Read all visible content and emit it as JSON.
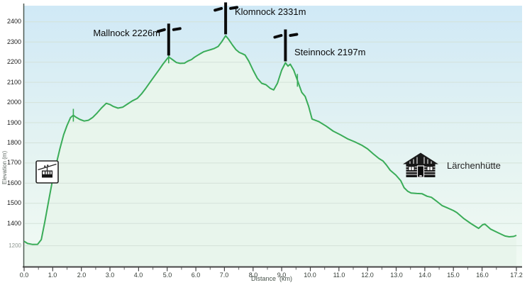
{
  "chart_data": {
    "type": "area",
    "title": "",
    "xlabel": "Distance  (km)",
    "ylabel": "Elevation (m)",
    "xlim": [
      0,
      17.2
    ],
    "ylim": [
      1190,
      2480
    ],
    "grid": true,
    "x_ticks": [
      {
        "km": 0,
        "label": "0.0"
      },
      {
        "km": 1,
        "label": "1.0"
      },
      {
        "km": 2,
        "label": "2.0"
      },
      {
        "km": 3,
        "label": "3.0"
      },
      {
        "km": 4,
        "label": "4.0"
      },
      {
        "km": 5,
        "label": "5.0"
      },
      {
        "km": 6,
        "label": "6.0"
      },
      {
        "km": 7,
        "label": "7.0"
      },
      {
        "km": 8,
        "label": "8.0"
      },
      {
        "km": 9,
        "label": "9.0"
      },
      {
        "km": 10,
        "label": "10.0"
      },
      {
        "km": 11,
        "label": "11.0"
      },
      {
        "km": 12,
        "label": "12.0"
      },
      {
        "km": 13,
        "label": "13.0"
      },
      {
        "km": 14,
        "label": "14.0"
      },
      {
        "km": 15,
        "label": "15.0"
      },
      {
        "km": 16,
        "label": "16.0"
      },
      {
        "km": 17.2,
        "label": "17.2"
      }
    ],
    "x_minor_tick_step": 0.5,
    "y_ticks": [
      {
        "elev": 2400,
        "label": "2400"
      },
      {
        "elev": 2300,
        "label": "2300"
      },
      {
        "elev": 2200,
        "label": "2200"
      },
      {
        "elev": 2100,
        "label": "2100"
      },
      {
        "elev": 2000,
        "label": "2000"
      },
      {
        "elev": 1900,
        "label": "1900"
      },
      {
        "elev": 1800,
        "label": "1800"
      },
      {
        "elev": 1700,
        "label": "1700"
      },
      {
        "elev": 1600,
        "label": "1600"
      },
      {
        "elev": 1500,
        "label": "1500"
      },
      {
        "elev": 1400,
        "label": "1400"
      },
      {
        "elev": 1290,
        "label": "1200",
        "muted": true
      }
    ],
    "profile": [
      [
        0.0,
        1312
      ],
      [
        0.12,
        1301
      ],
      [
        0.3,
        1296
      ],
      [
        0.47,
        1297
      ],
      [
        0.6,
        1320
      ],
      [
        0.72,
        1407
      ],
      [
        0.85,
        1507
      ],
      [
        1.0,
        1620
      ],
      [
        1.12,
        1693
      ],
      [
        1.25,
        1770
      ],
      [
        1.38,
        1840
      ],
      [
        1.5,
        1886
      ],
      [
        1.62,
        1925
      ],
      [
        1.72,
        1937
      ],
      [
        1.8,
        1928
      ],
      [
        1.95,
        1916
      ],
      [
        2.1,
        1908
      ],
      [
        2.25,
        1912
      ],
      [
        2.4,
        1926
      ],
      [
        2.55,
        1948
      ],
      [
        2.7,
        1972
      ],
      [
        2.87,
        1996
      ],
      [
        3.0,
        1990
      ],
      [
        3.12,
        1980
      ],
      [
        3.28,
        1972
      ],
      [
        3.45,
        1977
      ],
      [
        3.62,
        1993
      ],
      [
        3.78,
        2008
      ],
      [
        3.95,
        2020
      ],
      [
        4.1,
        2042
      ],
      [
        4.25,
        2070
      ],
      [
        4.4,
        2100
      ],
      [
        4.55,
        2130
      ],
      [
        4.72,
        2163
      ],
      [
        4.85,
        2190
      ],
      [
        4.95,
        2208
      ],
      [
        5.05,
        2226
      ],
      [
        5.18,
        2213
      ],
      [
        5.32,
        2198
      ],
      [
        5.45,
        2194
      ],
      [
        5.6,
        2195
      ],
      [
        5.72,
        2205
      ],
      [
        5.85,
        2213
      ],
      [
        5.95,
        2224
      ],
      [
        6.05,
        2233
      ],
      [
        6.17,
        2243
      ],
      [
        6.28,
        2252
      ],
      [
        6.4,
        2257
      ],
      [
        6.52,
        2262
      ],
      [
        6.65,
        2268
      ],
      [
        6.78,
        2278
      ],
      [
        6.9,
        2300
      ],
      [
        7.04,
        2331
      ],
      [
        7.15,
        2312
      ],
      [
        7.28,
        2285
      ],
      [
        7.4,
        2262
      ],
      [
        7.52,
        2248
      ],
      [
        7.62,
        2242
      ],
      [
        7.72,
        2235
      ],
      [
        7.85,
        2205
      ],
      [
        8.0,
        2160
      ],
      [
        8.15,
        2120
      ],
      [
        8.3,
        2095
      ],
      [
        8.45,
        2088
      ],
      [
        8.6,
        2070
      ],
      [
        8.72,
        2062
      ],
      [
        8.85,
        2095
      ],
      [
        9.0,
        2160
      ],
      [
        9.13,
        2197
      ],
      [
        9.22,
        2180
      ],
      [
        9.3,
        2190
      ],
      [
        9.42,
        2160
      ],
      [
        9.55,
        2110
      ],
      [
        9.7,
        2050
      ],
      [
        9.82,
        2030
      ],
      [
        9.94,
        1981
      ],
      [
        10.06,
        1918
      ],
      [
        10.3,
        1905
      ],
      [
        10.55,
        1883
      ],
      [
        10.8,
        1858
      ],
      [
        11.05,
        1840
      ],
      [
        11.3,
        1820
      ],
      [
        11.55,
        1805
      ],
      [
        11.8,
        1788
      ],
      [
        12.0,
        1770
      ],
      [
        12.2,
        1745
      ],
      [
        12.4,
        1722
      ],
      [
        12.54,
        1710
      ],
      [
        12.66,
        1690
      ],
      [
        12.79,
        1664
      ],
      [
        12.99,
        1640
      ],
      [
        13.16,
        1612
      ],
      [
        13.28,
        1577
      ],
      [
        13.4,
        1560
      ],
      [
        13.52,
        1551
      ],
      [
        13.72,
        1549
      ],
      [
        13.9,
        1548
      ],
      [
        14.08,
        1535
      ],
      [
        14.23,
        1530
      ],
      [
        14.4,
        1512
      ],
      [
        14.6,
        1489
      ],
      [
        14.78,
        1478
      ],
      [
        15.0,
        1464
      ],
      [
        15.12,
        1454
      ],
      [
        15.35,
        1426
      ],
      [
        15.6,
        1401
      ],
      [
        15.8,
        1383
      ],
      [
        15.88,
        1376
      ],
      [
        16.02,
        1394
      ],
      [
        16.1,
        1397
      ],
      [
        16.3,
        1372
      ],
      [
        16.55,
        1355
      ],
      [
        16.8,
        1338
      ],
      [
        16.95,
        1334
      ],
      [
        17.1,
        1336
      ],
      [
        17.2,
        1341
      ]
    ],
    "markers": {
      "peaks": [
        {
          "id": "mallnock",
          "icon": "summit-cross",
          "label": "Mallnock 2226m",
          "km": 5.05,
          "elev": 2226,
          "label_side": "left",
          "label_dy": 6
        },
        {
          "id": "klomnock",
          "icon": "summit-cross",
          "label": "Klomnock 2331m",
          "km": 7.04,
          "elev": 2331,
          "label_side": "right",
          "label_dy": 6
        },
        {
          "id": "steinnock",
          "icon": "summit-cross",
          "label": "Steinnock 2197m",
          "km": 9.13,
          "elev": 2197,
          "label_side": "right",
          "label_dy": 24
        }
      ],
      "pois": [
        {
          "id": "cable-car",
          "icon": "cable-car",
          "label": "",
          "km": 0.8,
          "elev": 1655
        },
        {
          "id": "hut",
          "icon": "mountain-hut",
          "label": "Lärchenhütte",
          "km": 13.85,
          "elev": 1690
        }
      ],
      "waypoint_ticks": [
        {
          "km": 1.72,
          "elev": 1937
        },
        {
          "km": 5.05,
          "elev": 2226
        },
        {
          "km": 9.55,
          "elev": 2110
        }
      ]
    },
    "colors": {
      "line": "#3aac58",
      "area_fill": "#e8f5ec",
      "bg_top": "#d0e9f6",
      "bg_mid": "#e4f3f2",
      "bg_bottom": "#f1faf3",
      "grid": "#d4e2d9",
      "axis": "#4f5b53",
      "marker": "#0b0b0b"
    }
  }
}
